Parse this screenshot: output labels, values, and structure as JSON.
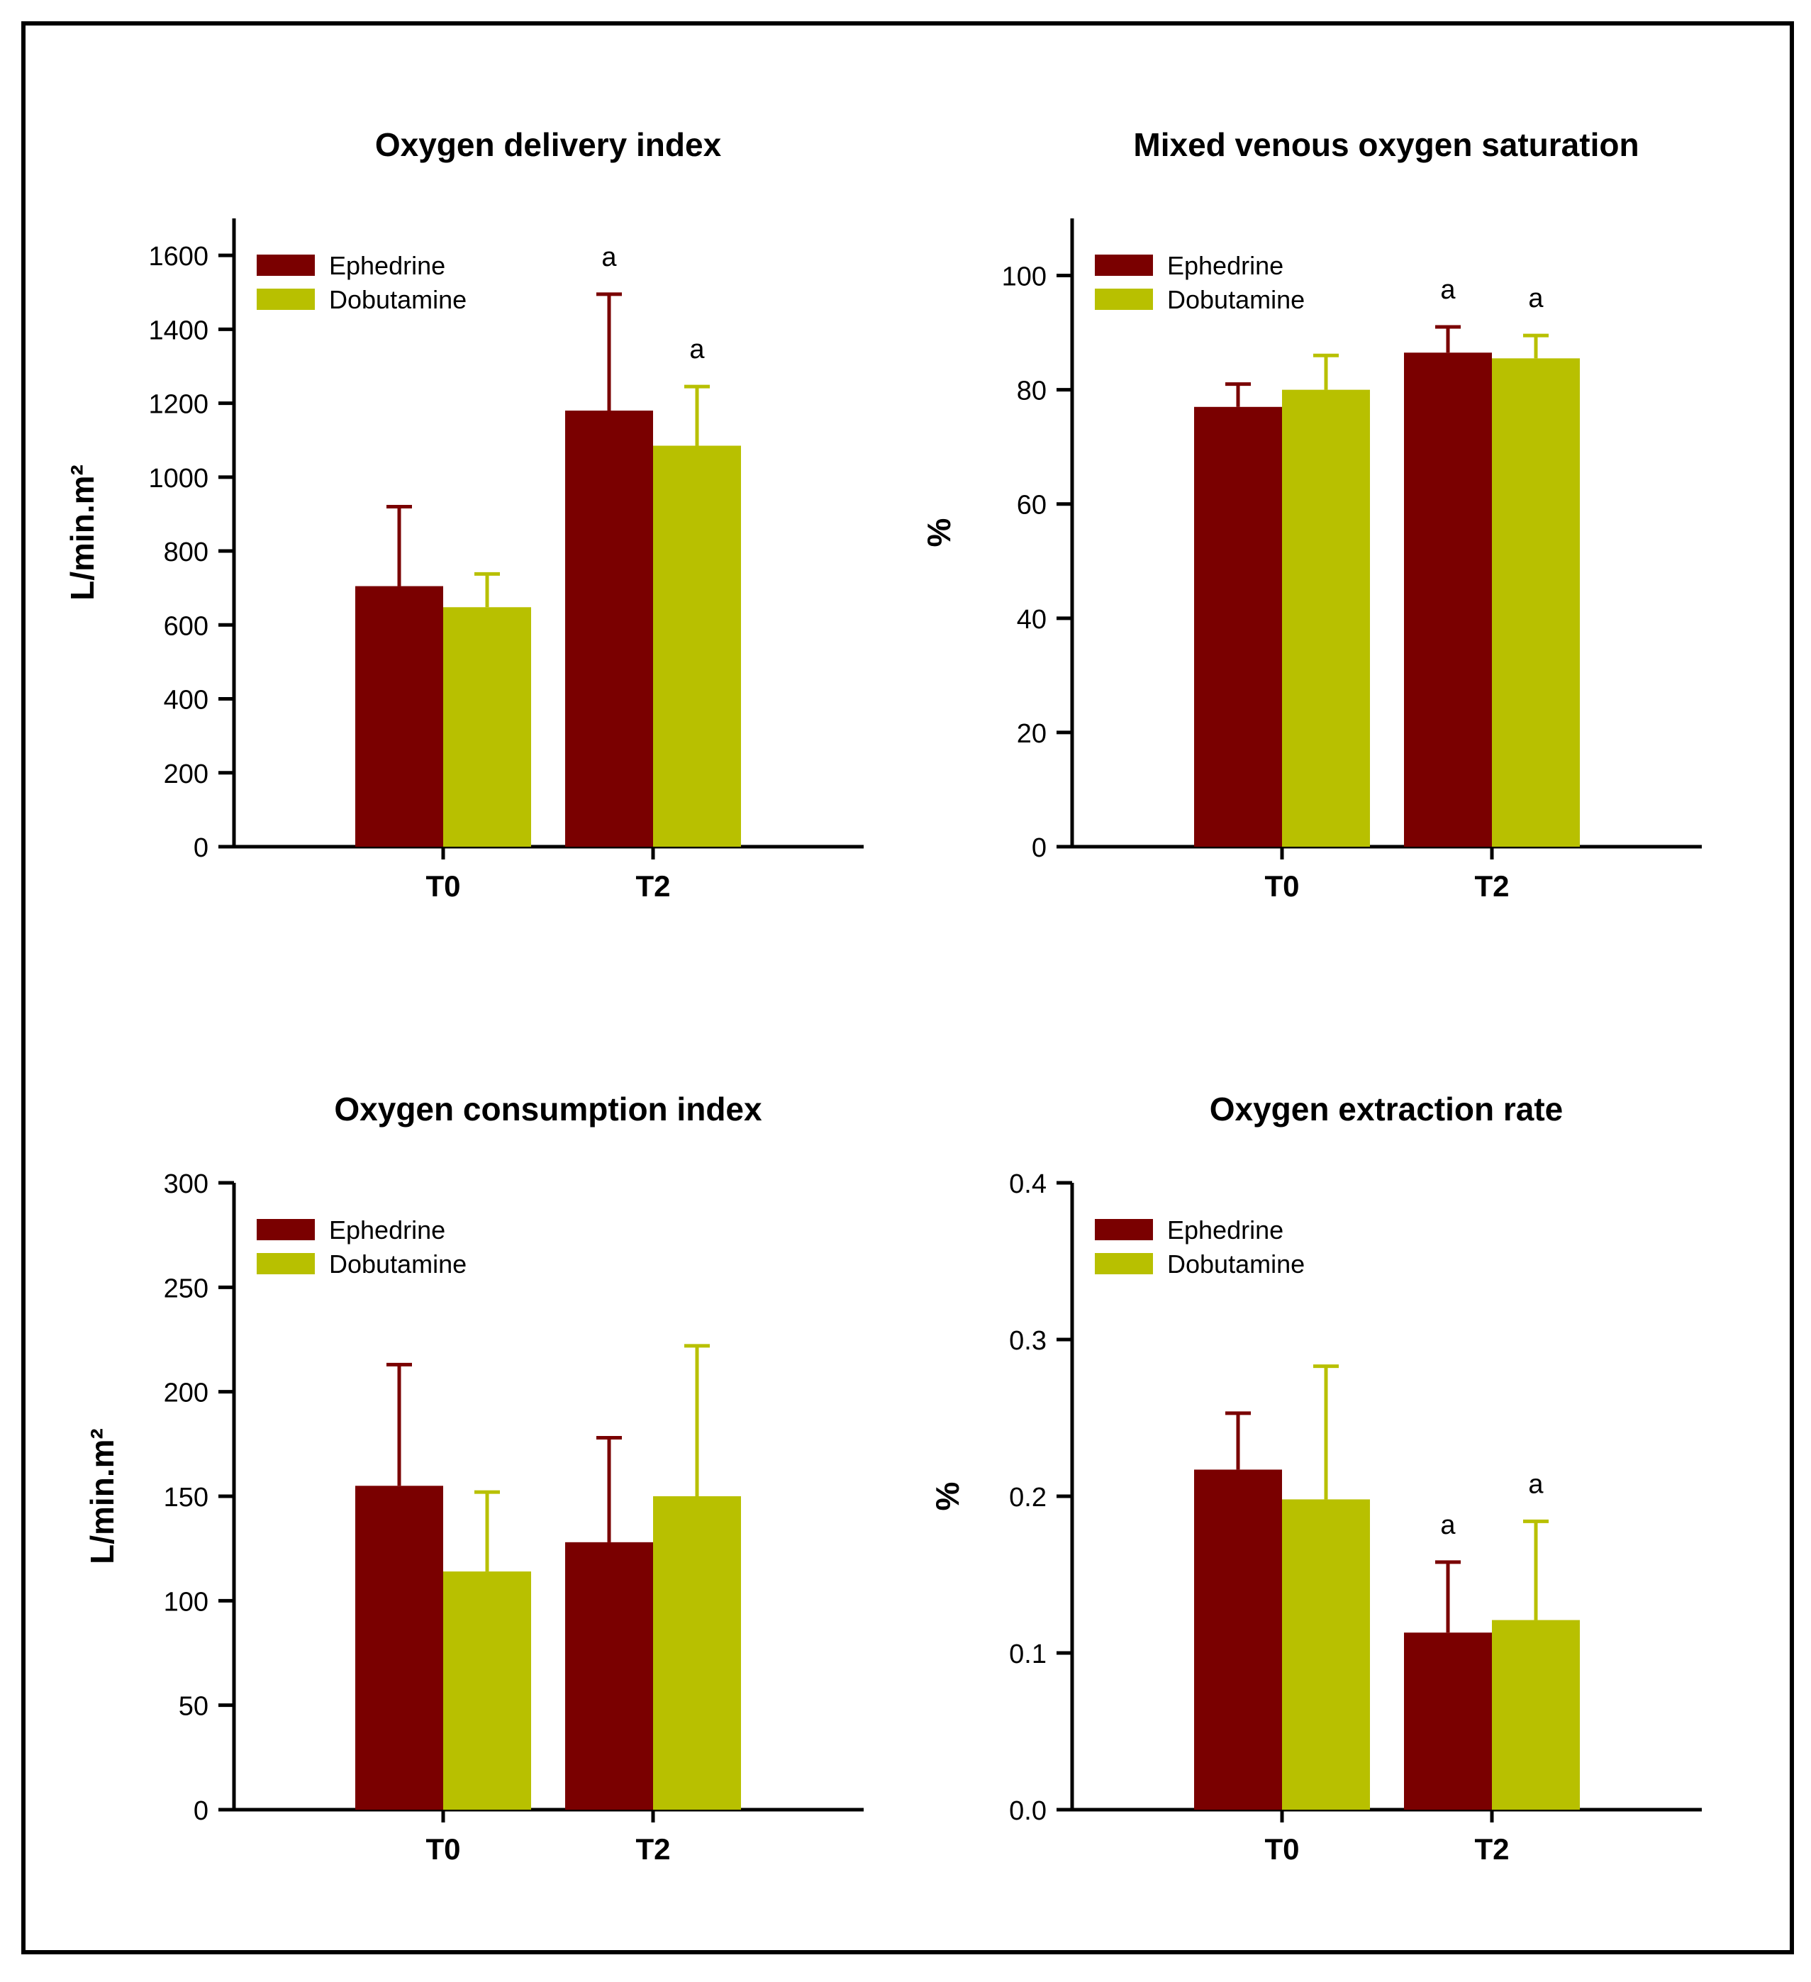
{
  "colors": {
    "ephedrine": "#7a0000",
    "dobutamine": "#b8c000",
    "axis": "#000000"
  },
  "chart_data": [
    {
      "type": "bar",
      "title": "Oxygen delivery index",
      "ylabel": "L/min.m²",
      "xlabel": "",
      "categories": [
        "T0",
        "T2"
      ],
      "ylim": [
        0,
        1700
      ],
      "yticks": [
        0,
        200,
        400,
        600,
        800,
        1000,
        1200,
        1400,
        1600
      ],
      "legend_position": "top-left",
      "series": [
        {
          "name": "Ephedrine",
          "values": [
            705,
            1180
          ],
          "errors": [
            920,
            1495
          ],
          "annotations": [
            "",
            "a"
          ]
        },
        {
          "name": "Dobutamine",
          "values": [
            648,
            1085
          ],
          "errors": [
            738,
            1245
          ],
          "annotations": [
            "",
            "a"
          ]
        }
      ]
    },
    {
      "type": "bar",
      "title": "Mixed venous oxygen saturation",
      "ylabel": "%",
      "xlabel": "",
      "categories": [
        "T0",
        "T2"
      ],
      "ylim": [
        0,
        110
      ],
      "yticks": [
        0,
        20,
        40,
        60,
        80,
        100
      ],
      "legend_position": "top-left",
      "series": [
        {
          "name": "Ephedrine",
          "values": [
            77,
            86.5
          ],
          "errors": [
            81,
            91
          ],
          "annotations": [
            "",
            "a"
          ]
        },
        {
          "name": "Dobutamine",
          "values": [
            80,
            85.5
          ],
          "errors": [
            86,
            89.5
          ],
          "annotations": [
            "",
            "a"
          ]
        }
      ]
    },
    {
      "type": "bar",
      "title": "Oxygen consumption index",
      "ylabel": "L/min.m²",
      "xlabel": "",
      "categories": [
        "T0",
        "T2"
      ],
      "ylim": [
        0,
        300
      ],
      "yticks": [
        0,
        50,
        100,
        150,
        200,
        250,
        300
      ],
      "legend_position": "top-left",
      "series": [
        {
          "name": "Ephedrine",
          "values": [
            155,
            128
          ],
          "errors": [
            213,
            178
          ],
          "annotations": [
            "",
            ""
          ]
        },
        {
          "name": "Dobutamine",
          "values": [
            114,
            150
          ],
          "errors": [
            152,
            222
          ],
          "annotations": [
            "",
            ""
          ]
        }
      ]
    },
    {
      "type": "bar",
      "title": "Oxygen extraction rate",
      "ylabel": "%",
      "xlabel": "",
      "categories": [
        "T0",
        "T2"
      ],
      "ylim": [
        0,
        0.4
      ],
      "yticks": [
        "0.0",
        "0.1",
        "0.2",
        "0.3",
        "0.4"
      ],
      "legend_position": "top-left",
      "series": [
        {
          "name": "Ephedrine",
          "values": [
            0.217,
            0.113
          ],
          "errors": [
            0.253,
            0.158
          ],
          "annotations": [
            "",
            "a"
          ]
        },
        {
          "name": "Dobutamine",
          "values": [
            0.198,
            0.121
          ],
          "errors": [
            0.283,
            0.184
          ],
          "annotations": [
            "",
            "a"
          ]
        }
      ]
    }
  ]
}
